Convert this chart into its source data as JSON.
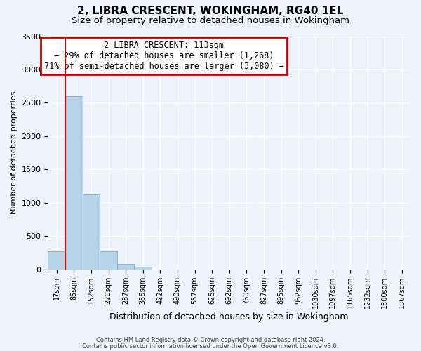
{
  "title": "2, LIBRA CRESCENT, WOKINGHAM, RG40 1EL",
  "subtitle": "Size of property relative to detached houses in Wokingham",
  "xlabel": "Distribution of detached houses by size in Wokingham",
  "ylabel": "Number of detached properties",
  "bar_labels": [
    "17sqm",
    "85sqm",
    "152sqm",
    "220sqm",
    "287sqm",
    "355sqm",
    "422sqm",
    "490sqm",
    "557sqm",
    "625sqm",
    "692sqm",
    "760sqm",
    "827sqm",
    "895sqm",
    "962sqm",
    "1030sqm",
    "1097sqm",
    "1165sqm",
    "1232sqm",
    "1300sqm",
    "1367sqm"
  ],
  "bar_values": [
    270,
    2600,
    1120,
    270,
    80,
    40,
    0,
    0,
    0,
    0,
    0,
    0,
    0,
    0,
    0,
    0,
    0,
    0,
    0,
    0,
    0
  ],
  "bar_color": "#b8d4e8",
  "bar_edge_color": "#7bafd4",
  "ylim": [
    0,
    3500
  ],
  "yticks": [
    0,
    500,
    1000,
    1500,
    2000,
    2500,
    3000,
    3500
  ],
  "vline_color": "#cc0000",
  "annotation_title": "2 LIBRA CRESCENT: 113sqm",
  "annotation_line1": "← 29% of detached houses are smaller (1,268)",
  "annotation_line2": "71% of semi-detached houses are larger (3,080) →",
  "annotation_box_color": "#cc0000",
  "annotation_text_color": "#000000",
  "footer1": "Contains HM Land Registry data © Crown copyright and database right 2024.",
  "footer2": "Contains public sector information licensed under the Open Government Licence v3.0.",
  "background_color": "#eef2fa",
  "plot_background": "#eef2fa",
  "grid_color": "#ffffff",
  "title_fontsize": 11,
  "subtitle_fontsize": 9.5
}
